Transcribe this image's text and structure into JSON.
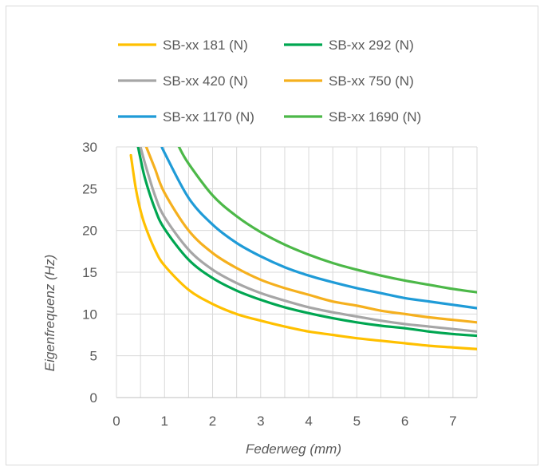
{
  "chart_data": {
    "type": "line",
    "title": "",
    "xlabel": "Federweg (mm)",
    "ylabel": "Eigenfrequenz (Hz)",
    "xlim": [
      0,
      7.5
    ],
    "ylim": [
      0,
      30
    ],
    "xticks": [
      0,
      1,
      2,
      3,
      4,
      5,
      6,
      7
    ],
    "yticks": [
      0,
      5,
      10,
      15,
      20,
      25,
      30
    ],
    "grid": true,
    "legend_position": "top",
    "series": [
      {
        "name": "SB-xx 181 (N)",
        "color": "#FFC000",
        "x": [
          0.3,
          0.4,
          0.5,
          0.6,
          0.8,
          1,
          1.5,
          2,
          2.5,
          3,
          3.5,
          4,
          4.5,
          5,
          5.5,
          6,
          6.5,
          7,
          7.5
        ],
        "y": [
          29,
          25.1,
          22.4,
          20.5,
          17.7,
          15.8,
          12.9,
          11.2,
          10.0,
          9.2,
          8.5,
          7.9,
          7.5,
          7.1,
          6.8,
          6.5,
          6.2,
          6.0,
          5.8
        ]
      },
      {
        "name": "SB-xx 292 (N)",
        "color": "#00A651",
        "x": [
          0.45,
          0.5,
          0.6,
          0.8,
          1,
          1.5,
          2,
          2.5,
          3,
          3.5,
          4,
          4.5,
          5,
          5.5,
          6,
          6.5,
          7,
          7.5
        ],
        "y": [
          30,
          28.6,
          26.1,
          22.6,
          20.2,
          16.5,
          14.3,
          12.8,
          11.7,
          10.8,
          10.1,
          9.5,
          9.0,
          8.6,
          8.3,
          7.9,
          7.6,
          7.4
        ]
      },
      {
        "name": "SB-xx 420 (N)",
        "color": "#A6A6A6",
        "x": [
          0.5,
          0.6,
          0.8,
          1,
          1.5,
          2,
          2.5,
          3,
          3.5,
          4,
          4.5,
          5,
          5.5,
          6,
          6.5,
          7,
          7.5
        ],
        "y": [
          30,
          27.9,
          24.2,
          21.6,
          17.7,
          15.3,
          13.7,
          12.5,
          11.6,
          10.8,
          10.2,
          9.7,
          9.2,
          8.8,
          8.5,
          8.2,
          7.9
        ]
      },
      {
        "name": "SB-xx 750 (N)",
        "color": "#F5B01E",
        "x": [
          0.62,
          0.8,
          1,
          1.5,
          2,
          2.5,
          3,
          3.5,
          4,
          4.5,
          5,
          5.5,
          6,
          6.5,
          7,
          7.5
        ],
        "y": [
          30,
          27.4,
          24.5,
          20.0,
          17.3,
          15.5,
          14.1,
          13.1,
          12.3,
          11.5,
          11.0,
          10.4,
          10.0,
          9.6,
          9.3,
          9.0
        ]
      },
      {
        "name": "SB-xx 1170 (N)",
        "color": "#1F9BD7",
        "x": [
          0.95,
          1,
          1.5,
          2,
          2.5,
          3,
          3.5,
          4,
          4.5,
          5,
          5.5,
          6,
          6.5,
          7,
          7.5
        ],
        "y": [
          30,
          29.3,
          23.9,
          20.7,
          18.5,
          16.9,
          15.6,
          14.6,
          13.8,
          13.1,
          12.5,
          11.9,
          11.5,
          11.1,
          10.7
        ]
      },
      {
        "name": "SB-xx 1690 (N)",
        "color": "#4CB848",
        "x": [
          1.3,
          1.5,
          2,
          2.5,
          3,
          3.5,
          4,
          4.5,
          5,
          5.5,
          6,
          6.5,
          7,
          7.5
        ],
        "y": [
          30,
          28.0,
          24.2,
          21.7,
          19.8,
          18.3,
          17.1,
          16.1,
          15.3,
          14.6,
          14.0,
          13.5,
          13.0,
          12.6
        ]
      }
    ]
  }
}
